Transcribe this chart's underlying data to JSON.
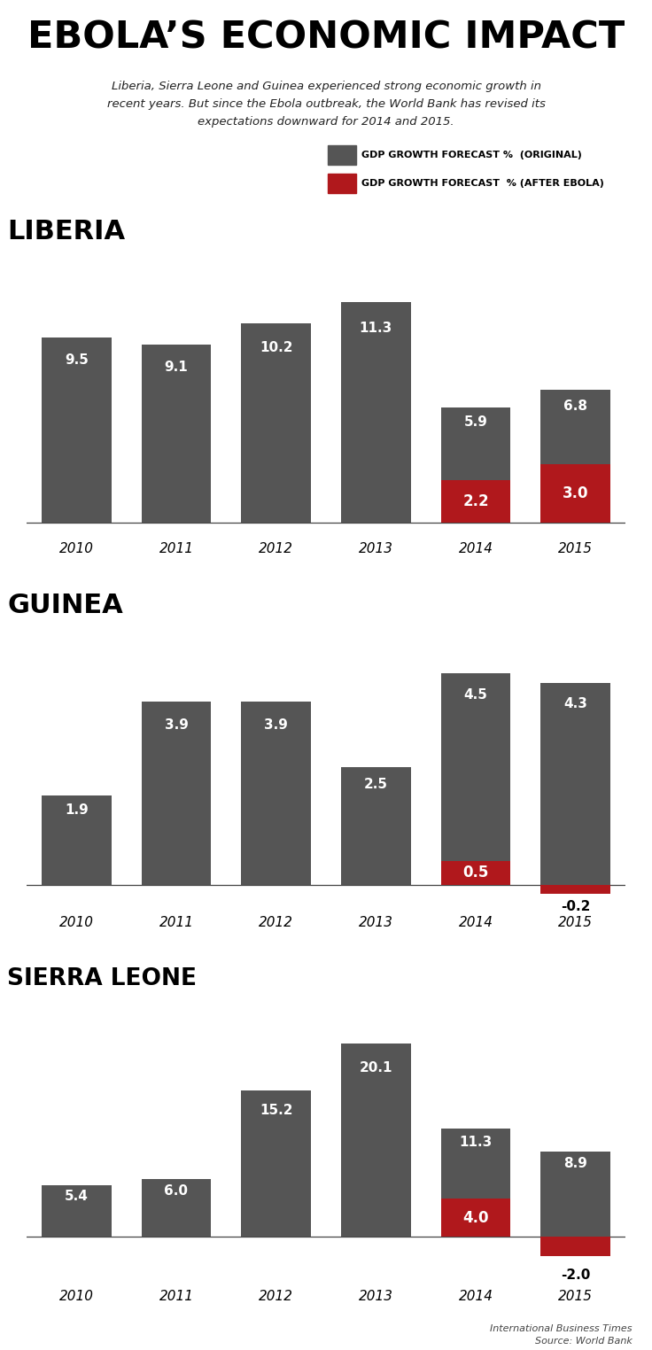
{
  "title": "EBOLA’S ECONOMIC IMPACT",
  "subtitle": "Liberia, Sierra Leone and Guinea experienced strong economic growth in\nrecent years. But since the Ebola outbreak, the World Bank has revised its\nexpectations downward for 2014 and 2015.",
  "legend_original": "GDP GROWTH FORECAST %  (ORIGINAL)",
  "legend_ebola": "GDP GROWTH FORECAST  % (AFTER EBOLA)",
  "source": "International Business Times\nSource: World Bank",
  "gray_color": "#555555",
  "red_color": "#b0181c",
  "bg_color": "#ffffff",
  "years": [
    "2010",
    "2011",
    "2012",
    "2013",
    "2014",
    "2015"
  ],
  "liberia": {
    "label": "LIBERIA",
    "original": [
      9.5,
      9.1,
      10.2,
      11.3,
      5.9,
      6.8
    ],
    "ebola": [
      null,
      null,
      null,
      null,
      2.2,
      3.0
    ]
  },
  "guinea": {
    "label": "GUINEA",
    "original": [
      1.9,
      3.9,
      3.9,
      2.5,
      4.5,
      4.3
    ],
    "ebola": [
      null,
      null,
      null,
      null,
      0.5,
      -0.2
    ]
  },
  "sierra_leone": {
    "label": "SIERRA LEONE",
    "original": [
      5.4,
      6.0,
      15.2,
      20.1,
      11.3,
      8.9
    ],
    "ebola": [
      null,
      null,
      null,
      null,
      4.0,
      -2.0
    ]
  }
}
